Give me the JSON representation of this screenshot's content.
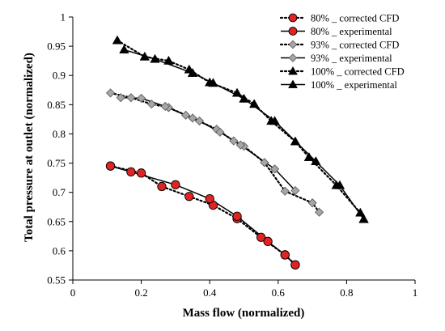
{
  "chart_data": {
    "type": "line",
    "title": "",
    "xlabel": "Mass flow (normalized)",
    "ylabel": "Total pressure at outlet (normalized)",
    "xlim": [
      0,
      1
    ],
    "ylim": [
      0.55,
      1
    ],
    "x_ticks": [
      "0",
      "0.2",
      "0.4",
      "0.6",
      "0.8",
      "1"
    ],
    "y_ticks": [
      "0.55",
      "0.6",
      "0.65",
      "0.7",
      "0.75",
      "0.8",
      "0.85",
      "0.9",
      "0.95",
      "1"
    ],
    "grid": false,
    "legend_position": "top-right",
    "series": [
      {
        "name": "80% _ corrected CFD",
        "line_style": "dotted",
        "marker": "circle",
        "color": "#e02424",
        "x": [
          0.11,
          0.2,
          0.26,
          0.34,
          0.41,
          0.48,
          0.55,
          0.62,
          0.65
        ],
        "y": [
          0.745,
          0.733,
          0.71,
          0.693,
          0.678,
          0.655,
          0.623,
          0.593,
          0.576
        ]
      },
      {
        "name": "80% _ experimental",
        "line_style": "solid",
        "marker": "circle",
        "color": "#e02424",
        "x": [
          0.11,
          0.17,
          0.3,
          0.4,
          0.48,
          0.57,
          0.62,
          0.65
        ],
        "y": [
          0.745,
          0.735,
          0.713,
          0.689,
          0.659,
          0.616,
          0.593,
          0.576
        ]
      },
      {
        "name": "93% _ corrected CFD",
        "line_style": "dotted",
        "marker": "diamond",
        "color": "#a6a6a6",
        "x": [
          0.11,
          0.17,
          0.23,
          0.28,
          0.35,
          0.42,
          0.47,
          0.5,
          0.56,
          0.62,
          0.7,
          0.72
        ],
        "y": [
          0.87,
          0.862,
          0.851,
          0.845,
          0.827,
          0.808,
          0.788,
          0.779,
          0.751,
          0.702,
          0.682,
          0.666
        ]
      },
      {
        "name": "93% _ experimental",
        "line_style": "solid",
        "marker": "diamond",
        "color": "#a6a6a6",
        "x": [
          0.14,
          0.2,
          0.27,
          0.33,
          0.37,
          0.43,
          0.49,
          0.59,
          0.65
        ],
        "y": [
          0.862,
          0.861,
          0.847,
          0.832,
          0.822,
          0.803,
          0.781,
          0.74,
          0.703
        ]
      },
      {
        "name": "100% _ corrected CFD",
        "line_style": "dotted",
        "marker": "triangle",
        "color": "#000000",
        "x": [
          0.13,
          0.21,
          0.28,
          0.34,
          0.4,
          0.48,
          0.53,
          0.58,
          0.65,
          0.69,
          0.77,
          0.84,
          0.85
        ],
        "y": [
          0.96,
          0.932,
          0.925,
          0.91,
          0.888,
          0.87,
          0.851,
          0.822,
          0.787,
          0.76,
          0.712,
          0.665,
          0.654
        ]
      },
      {
        "name": "100% _ experimental",
        "line_style": "solid",
        "marker": "triangle",
        "color": "#000000",
        "x": [
          0.15,
          0.24,
          0.35,
          0.41,
          0.5,
          0.59,
          0.71,
          0.78,
          0.85
        ],
        "y": [
          0.944,
          0.928,
          0.904,
          0.887,
          0.86,
          0.822,
          0.753,
          0.712,
          0.654
        ]
      }
    ]
  }
}
